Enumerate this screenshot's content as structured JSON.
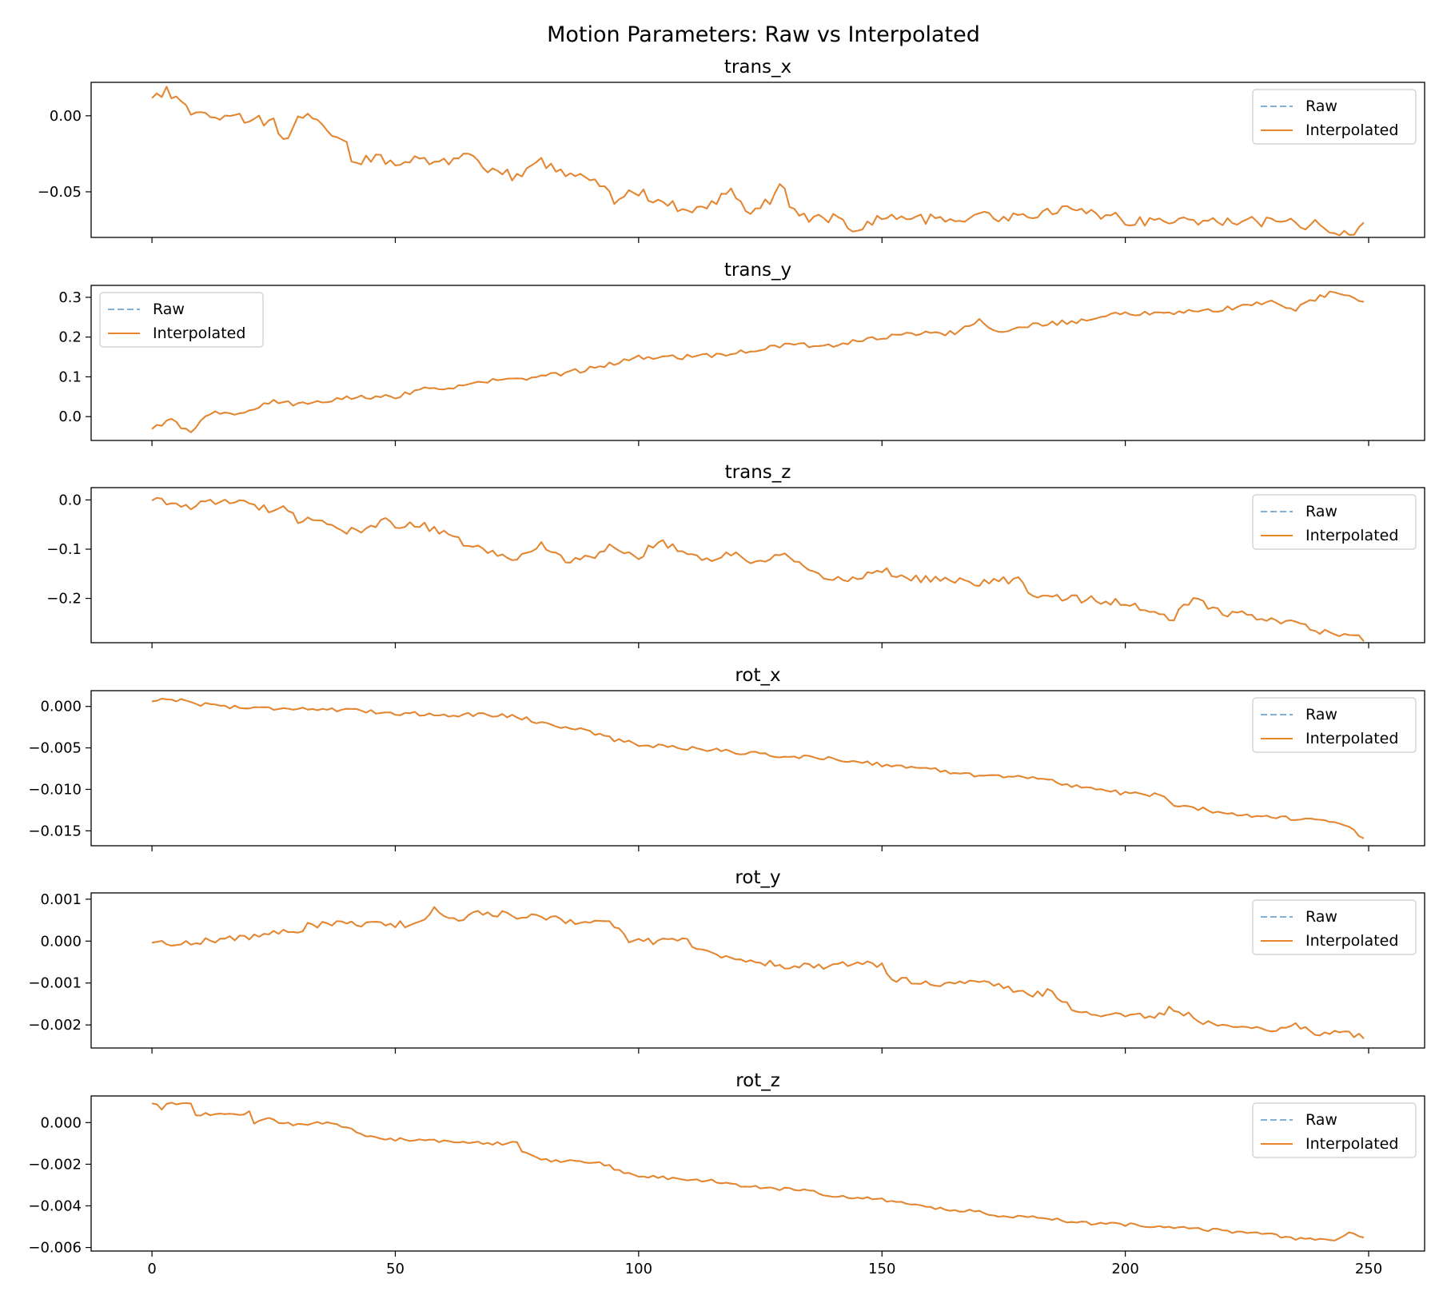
{
  "figure": {
    "title": "Motion Parameters: Raw vs Interpolated",
    "colors": {
      "raw": "#7fb0d8",
      "interpolated": "#e8862d",
      "frame": "#000000"
    },
    "legend": {
      "raw_label": "Raw",
      "interpolated_label": "Interpolated"
    }
  },
  "chart_data": [
    {
      "type": "line",
      "title": "trans_x",
      "xlabel": "",
      "ylabel": "",
      "xlim": [
        -12.5,
        261.5
      ],
      "ylim": [
        -0.08,
        0.022
      ],
      "xticks": [
        0,
        50,
        100,
        150,
        200,
        250
      ],
      "yticks": [
        0.0,
        -0.05
      ],
      "ytick_labels": [
        "0.00",
        "−0.05"
      ],
      "show_xtick_labels": false,
      "legend_position": "upper-right",
      "anchors": [
        [
          0,
          0.013
        ],
        [
          3,
          0.017
        ],
        [
          6,
          0.008
        ],
        [
          10,
          0.0
        ],
        [
          15,
          0.0
        ],
        [
          20,
          -0.002
        ],
        [
          25,
          -0.005
        ],
        [
          28,
          -0.016
        ],
        [
          30,
          -0.001
        ],
        [
          33,
          -0.001
        ],
        [
          36,
          -0.012
        ],
        [
          40,
          -0.02
        ],
        [
          42,
          -0.034
        ],
        [
          44,
          -0.027
        ],
        [
          50,
          -0.03
        ],
        [
          55,
          -0.028
        ],
        [
          60,
          -0.03
        ],
        [
          65,
          -0.028
        ],
        [
          70,
          -0.037
        ],
        [
          75,
          -0.04
        ],
        [
          80,
          -0.03
        ],
        [
          85,
          -0.037
        ],
        [
          90,
          -0.04
        ],
        [
          95,
          -0.055
        ],
        [
          100,
          -0.05
        ],
        [
          105,
          -0.057
        ],
        [
          110,
          -0.062
        ],
        [
          115,
          -0.058
        ],
        [
          119,
          -0.046
        ],
        [
          123,
          -0.065
        ],
        [
          127,
          -0.056
        ],
        [
          129,
          -0.046
        ],
        [
          133,
          -0.067
        ],
        [
          140,
          -0.067
        ],
        [
          145,
          -0.075
        ],
        [
          150,
          -0.066
        ],
        [
          160,
          -0.068
        ],
        [
          170,
          -0.066
        ],
        [
          180,
          -0.067
        ],
        [
          190,
          -0.06
        ],
        [
          200,
          -0.069
        ],
        [
          210,
          -0.069
        ],
        [
          220,
          -0.069
        ],
        [
          230,
          -0.07
        ],
        [
          240,
          -0.072
        ],
        [
          246,
          -0.077
        ],
        [
          249,
          -0.072
        ]
      ],
      "series": [
        {
          "name": "Raw",
          "style": "dashed",
          "jitter": 0.0035
        },
        {
          "name": "Interpolated",
          "style": "solid",
          "jitter": 0.0035
        }
      ]
    },
    {
      "type": "line",
      "title": "trans_y",
      "xlabel": "",
      "ylabel": "",
      "xlim": [
        -12.5,
        261.5
      ],
      "ylim": [
        -0.06,
        0.33
      ],
      "xticks": [
        0,
        50,
        100,
        150,
        200,
        250
      ],
      "yticks": [
        0.0,
        0.1,
        0.2,
        0.3
      ],
      "ytick_labels": [
        "0.0",
        "0.1",
        "0.2",
        "0.3"
      ],
      "show_xtick_labels": false,
      "legend_position": "upper-left",
      "anchors": [
        [
          0,
          -0.03
        ],
        [
          4,
          -0.01
        ],
        [
          8,
          -0.04
        ],
        [
          12,
          0.01
        ],
        [
          20,
          0.01
        ],
        [
          25,
          0.04
        ],
        [
          30,
          0.03
        ],
        [
          40,
          0.05
        ],
        [
          50,
          0.05
        ],
        [
          55,
          0.07
        ],
        [
          60,
          0.07
        ],
        [
          65,
          0.08
        ],
        [
          70,
          0.09
        ],
        [
          80,
          0.1
        ],
        [
          90,
          0.12
        ],
        [
          100,
          0.15
        ],
        [
          110,
          0.15
        ],
        [
          120,
          0.16
        ],
        [
          125,
          0.17
        ],
        [
          130,
          0.18
        ],
        [
          140,
          0.18
        ],
        [
          145,
          0.19
        ],
        [
          150,
          0.2
        ],
        [
          160,
          0.21
        ],
        [
          165,
          0.21
        ],
        [
          170,
          0.24
        ],
        [
          175,
          0.21
        ],
        [
          180,
          0.23
        ],
        [
          190,
          0.24
        ],
        [
          195,
          0.25
        ],
        [
          200,
          0.26
        ],
        [
          210,
          0.26
        ],
        [
          220,
          0.27
        ],
        [
          230,
          0.29
        ],
        [
          235,
          0.27
        ],
        [
          240,
          0.3
        ],
        [
          243,
          0.315
        ],
        [
          245,
          0.31
        ],
        [
          249,
          0.29
        ]
      ],
      "series": [
        {
          "name": "Raw",
          "style": "dashed",
          "jitter": 0.006
        },
        {
          "name": "Interpolated",
          "style": "solid",
          "jitter": 0.006
        }
      ]
    },
    {
      "type": "line",
      "title": "trans_z",
      "xlabel": "",
      "ylabel": "",
      "xlim": [
        -12.5,
        261.5
      ],
      "ylim": [
        -0.29,
        0.025
      ],
      "xticks": [
        0,
        50,
        100,
        150,
        200,
        250
      ],
      "yticks": [
        0.0,
        -0.1,
        -0.2
      ],
      "ytick_labels": [
        "0.0",
        "−0.1",
        "−0.2"
      ],
      "show_xtick_labels": false,
      "legend_position": "upper-right",
      "anchors": [
        [
          0,
          0.0
        ],
        [
          1,
          0.01
        ],
        [
          5,
          -0.015
        ],
        [
          10,
          -0.01
        ],
        [
          15,
          0.0
        ],
        [
          20,
          -0.01
        ],
        [
          25,
          -0.02
        ],
        [
          27,
          -0.005
        ],
        [
          30,
          -0.04
        ],
        [
          35,
          -0.04
        ],
        [
          40,
          -0.065
        ],
        [
          45,
          -0.06
        ],
        [
          48,
          -0.04
        ],
        [
          50,
          -0.05
        ],
        [
          55,
          -0.05
        ],
        [
          60,
          -0.07
        ],
        [
          65,
          -0.09
        ],
        [
          70,
          -0.11
        ],
        [
          75,
          -0.12
        ],
        [
          80,
          -0.09
        ],
        [
          85,
          -0.12
        ],
        [
          90,
          -0.12
        ],
        [
          95,
          -0.09
        ],
        [
          100,
          -0.12
        ],
        [
          104,
          -0.08
        ],
        [
          110,
          -0.11
        ],
        [
          115,
          -0.12
        ],
        [
          120,
          -0.11
        ],
        [
          125,
          -0.13
        ],
        [
          130,
          -0.11
        ],
        [
          135,
          -0.15
        ],
        [
          140,
          -0.16
        ],
        [
          145,
          -0.16
        ],
        [
          150,
          -0.14
        ],
        [
          155,
          -0.16
        ],
        [
          160,
          -0.16
        ],
        [
          170,
          -0.17
        ],
        [
          178,
          -0.16
        ],
        [
          180,
          -0.19
        ],
        [
          190,
          -0.2
        ],
        [
          200,
          -0.21
        ],
        [
          205,
          -0.23
        ],
        [
          210,
          -0.24
        ],
        [
          214,
          -0.2
        ],
        [
          220,
          -0.23
        ],
        [
          230,
          -0.24
        ],
        [
          235,
          -0.25
        ],
        [
          240,
          -0.27
        ],
        [
          245,
          -0.275
        ],
        [
          249,
          -0.28
        ]
      ],
      "series": [
        {
          "name": "Raw",
          "style": "dashed",
          "jitter": 0.008
        },
        {
          "name": "Interpolated",
          "style": "solid",
          "jitter": 0.008
        }
      ]
    },
    {
      "type": "line",
      "title": "rot_x",
      "xlabel": "",
      "ylabel": "",
      "xlim": [
        -12.5,
        261.5
      ],
      "ylim": [
        -0.0168,
        0.0019
      ],
      "xticks": [
        0,
        50,
        100,
        150,
        200,
        250
      ],
      "yticks": [
        0.0,
        -0.005,
        -0.01,
        -0.015
      ],
      "ytick_labels": [
        "0.000",
        "−0.005",
        "−0.010",
        "−0.015"
      ],
      "show_xtick_labels": false,
      "legend_position": "upper-right",
      "anchors": [
        [
          0,
          0.0006
        ],
        [
          3,
          0.001
        ],
        [
          10,
          0.0003
        ],
        [
          20,
          -0.0002
        ],
        [
          30,
          -0.0002
        ],
        [
          40,
          -0.0005
        ],
        [
          50,
          -0.0008
        ],
        [
          60,
          -0.001
        ],
        [
          70,
          -0.001
        ],
        [
          75,
          -0.0012
        ],
        [
          80,
          -0.002
        ],
        [
          90,
          -0.003
        ],
        [
          95,
          -0.004
        ],
        [
          100,
          -0.0046
        ],
        [
          110,
          -0.005
        ],
        [
          120,
          -0.0055
        ],
        [
          130,
          -0.006
        ],
        [
          140,
          -0.0063
        ],
        [
          150,
          -0.007
        ],
        [
          160,
          -0.0076
        ],
        [
          170,
          -0.0083
        ],
        [
          180,
          -0.0085
        ],
        [
          190,
          -0.0096
        ],
        [
          200,
          -0.0105
        ],
        [
          207,
          -0.0107
        ],
        [
          210,
          -0.0118
        ],
        [
          220,
          -0.0128
        ],
        [
          230,
          -0.0133
        ],
        [
          240,
          -0.0138
        ],
        [
          245,
          -0.0142
        ],
        [
          249,
          -0.016
        ]
      ],
      "series": [
        {
          "name": "Raw",
          "style": "dashed",
          "jitter": 0.00025
        },
        {
          "name": "Interpolated",
          "style": "solid",
          "jitter": 0.00025
        }
      ]
    },
    {
      "type": "line",
      "title": "rot_y",
      "xlabel": "",
      "ylabel": "",
      "xlim": [
        -12.5,
        261.5
      ],
      "ylim": [
        -0.00255,
        0.00115
      ],
      "xticks": [
        0,
        50,
        100,
        150,
        200,
        250
      ],
      "yticks": [
        0.001,
        0.0,
        -0.001,
        -0.002
      ],
      "ytick_labels": [
        "0.001",
        "0.000",
        "−0.001",
        "−0.002"
      ],
      "show_xtick_labels": false,
      "legend_position": "upper-right",
      "anchors": [
        [
          0,
          -5e-05
        ],
        [
          5,
          -5e-05
        ],
        [
          10,
          0.0
        ],
        [
          20,
          0.0001
        ],
        [
          25,
          0.0002
        ],
        [
          30,
          0.0002
        ],
        [
          32,
          0.0004
        ],
        [
          40,
          0.0004
        ],
        [
          50,
          0.0004
        ],
        [
          55,
          0.0004
        ],
        [
          58,
          0.0008
        ],
        [
          62,
          0.0005
        ],
        [
          68,
          0.0007
        ],
        [
          75,
          0.0006
        ],
        [
          85,
          0.0005
        ],
        [
          95,
          0.0004
        ],
        [
          98,
          0.0
        ],
        [
          105,
          0.0
        ],
        [
          110,
          5e-05
        ],
        [
          112,
          -0.0002
        ],
        [
          118,
          -0.0004
        ],
        [
          125,
          -0.0005
        ],
        [
          130,
          -0.0006
        ],
        [
          140,
          -0.0006
        ],
        [
          145,
          -0.0005
        ],
        [
          150,
          -0.0006
        ],
        [
          152,
          -0.0009
        ],
        [
          160,
          -0.001
        ],
        [
          170,
          -0.001
        ],
        [
          175,
          -0.0011
        ],
        [
          180,
          -0.0013
        ],
        [
          185,
          -0.0012
        ],
        [
          190,
          -0.0017
        ],
        [
          200,
          -0.0018
        ],
        [
          205,
          -0.0018
        ],
        [
          210,
          -0.0016
        ],
        [
          215,
          -0.0019
        ],
        [
          220,
          -0.002
        ],
        [
          230,
          -0.0021
        ],
        [
          235,
          -0.002
        ],
        [
          240,
          -0.0022
        ],
        [
          245,
          -0.0022
        ],
        [
          249,
          -0.0023
        ]
      ],
      "series": [
        {
          "name": "Raw",
          "style": "dashed",
          "jitter": 8e-05
        },
        {
          "name": "Interpolated",
          "style": "solid",
          "jitter": 8e-05
        }
      ]
    },
    {
      "type": "line",
      "title": "rot_z",
      "xlabel": "",
      "ylabel": "",
      "xlim": [
        -12.5,
        261.5
      ],
      "ylim": [
        -0.00617,
        0.00128
      ],
      "xticks": [
        0,
        50,
        100,
        150,
        200,
        250
      ],
      "xtick_labels": [
        "0",
        "50",
        "100",
        "150",
        "200",
        "250"
      ],
      "yticks": [
        0.0,
        -0.002,
        -0.004,
        -0.006
      ],
      "ytick_labels": [
        "0.000",
        "−0.002",
        "−0.004",
        "−0.006"
      ],
      "show_xtick_labels": true,
      "legend_position": "upper-right",
      "anchors": [
        [
          0,
          0.0009
        ],
        [
          2,
          0.0007
        ],
        [
          3,
          0.0009
        ],
        [
          8,
          0.0009
        ],
        [
          9,
          0.0004
        ],
        [
          18,
          0.0004
        ],
        [
          20,
          0.0005
        ],
        [
          21,
          -0.0001
        ],
        [
          24,
          0.0003
        ],
        [
          26,
          0.0
        ],
        [
          30,
          -0.0001
        ],
        [
          35,
          0.0
        ],
        [
          40,
          -0.0002
        ],
        [
          42,
          -0.0005
        ],
        [
          45,
          -0.0007
        ],
        [
          50,
          -0.0008
        ],
        [
          60,
          -0.0009
        ],
        [
          70,
          -0.001
        ],
        [
          75,
          -0.001
        ],
        [
          76,
          -0.0014
        ],
        [
          80,
          -0.0018
        ],
        [
          90,
          -0.0019
        ],
        [
          93,
          -0.002
        ],
        [
          95,
          -0.0022
        ],
        [
          100,
          -0.0026
        ],
        [
          110,
          -0.0027
        ],
        [
          115,
          -0.0028
        ],
        [
          120,
          -0.003
        ],
        [
          130,
          -0.0032
        ],
        [
          135,
          -0.0033
        ],
        [
          140,
          -0.0035
        ],
        [
          145,
          -0.0036
        ],
        [
          150,
          -0.0037
        ],
        [
          160,
          -0.0041
        ],
        [
          170,
          -0.0043
        ],
        [
          175,
          -0.0045
        ],
        [
          180,
          -0.0045
        ],
        [
          185,
          -0.0046
        ],
        [
          190,
          -0.0048
        ],
        [
          200,
          -0.0049
        ],
        [
          210,
          -0.005
        ],
        [
          220,
          -0.0052
        ],
        [
          230,
          -0.0054
        ],
        [
          235,
          -0.0056
        ],
        [
          240,
          -0.0056
        ],
        [
          244,
          -0.0056
        ],
        [
          246,
          -0.0052
        ],
        [
          249,
          -0.0056
        ]
      ],
      "series": [
        {
          "name": "Raw",
          "style": "dashed",
          "jitter": 8e-05
        },
        {
          "name": "Interpolated",
          "style": "solid",
          "jitter": 8e-05
        }
      ]
    }
  ]
}
